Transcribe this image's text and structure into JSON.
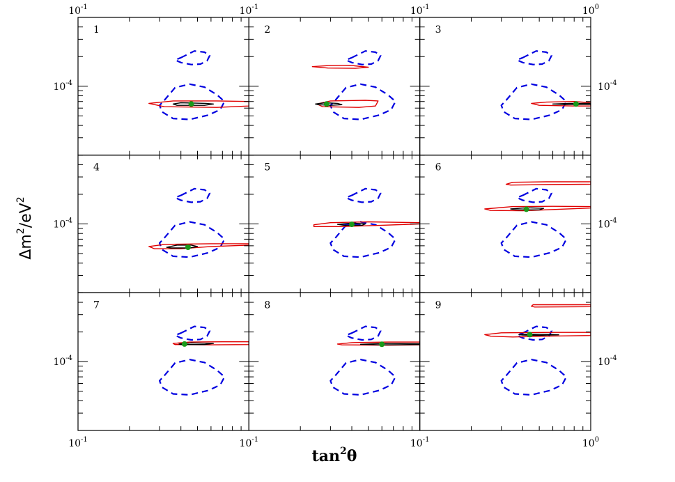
{
  "chart_data": {
    "type": "contour-grid",
    "xlabel": "tan",
    "xlabel_sup": "2",
    "xlabel_theta": "θ",
    "ylabel_main": "Δm",
    "ylabel_sup": "2",
    "ylabel_tail": "/eV",
    "ylabel_sup2": "2",
    "x_scale": "log",
    "y_scale": "log",
    "panel_xlim": [
      0.1,
      1.0
    ],
    "panel_ylim": [
      2e-05,
      0.0005
    ],
    "layout": {
      "rows": 3,
      "cols": 3
    },
    "x_tick_labels_bottom": [
      {
        "base": "10",
        "exp": "-1"
      },
      {
        "base": "10",
        "exp": "-1"
      },
      {
        "base": "10",
        "exp": "-1"
      },
      {
        "base": "10",
        "exp": "0"
      }
    ],
    "x_tick_labels_top": [
      {
        "base": "10",
        "exp": "-1"
      },
      {
        "base": "10",
        "exp": "-1"
      },
      {
        "base": "10",
        "exp": "-1"
      },
      {
        "base": "10",
        "exp": "0"
      }
    ],
    "y_tick_label": {
      "base": "10",
      "exp": "-4",
      "value": 0.0001
    },
    "colors": {
      "red": "#e00000",
      "black": "#000000",
      "blue": "#0000e0",
      "green": "#1a9a1a"
    },
    "reference_contours": [
      {
        "name": "upper-blue-dashed",
        "color": "blue",
        "style": "dashed",
        "points": [
          [
            0.4,
            0.000195
          ],
          [
            0.48,
            0.000228
          ],
          [
            0.55,
            0.000222
          ],
          [
            0.59,
            0.000205
          ],
          [
            0.57,
            0.000182
          ],
          [
            0.52,
            0.000168
          ],
          [
            0.46,
            0.000166
          ],
          [
            0.4,
            0.000174
          ],
          [
            0.37,
            0.000185
          ]
        ]
      },
      {
        "name": "lower-blue-dashed",
        "color": "blue",
        "style": "dashed",
        "points": [
          [
            0.32,
            7.2e-05
          ],
          [
            0.37,
            9.7e-05
          ],
          [
            0.45,
            0.000105
          ],
          [
            0.55,
            9.8e-05
          ],
          [
            0.65,
            8.2e-05
          ],
          [
            0.72,
            7e-05
          ],
          [
            0.68,
            5.8e-05
          ],
          [
            0.58,
            5.1e-05
          ],
          [
            0.45,
            4.6e-05
          ],
          [
            0.36,
            4.7e-05
          ],
          [
            0.31,
            5.5e-05
          ],
          [
            0.3,
            6.4e-05
          ]
        ]
      }
    ],
    "panels": [
      {
        "id": "1",
        "best_fit": [
          0.46,
          6.6e-05
        ],
        "red": [
          [
            [
              0.26,
              6.7e-05
            ],
            [
              0.36,
              7.1e-05
            ],
            [
              0.65,
              7.1e-05
            ],
            [
              1.0,
              7e-05
            ],
            [
              1.0,
              6.3e-05
            ],
            [
              0.65,
              6.1e-05
            ],
            [
              0.32,
              6.2e-05
            ]
          ]
        ],
        "black": [
          [
            0.36,
            6.6e-05
          ],
          [
            0.4,
            6.8e-05
          ],
          [
            0.56,
            6.7e-05
          ],
          [
            0.62,
            6.6e-05
          ],
          [
            0.55,
            6.4e-05
          ],
          [
            0.38,
            6.4e-05
          ]
        ]
      },
      {
        "id": "2",
        "best_fit": [
          0.285,
          6.6e-05
        ],
        "red": [
          [
            [
              0.25,
              6.6e-05
            ],
            [
              0.3,
              7.1e-05
            ],
            [
              0.48,
              7.2e-05
            ],
            [
              0.57,
              7.1e-05
            ],
            [
              0.55,
              6.3e-05
            ],
            [
              0.44,
              6.1e-05
            ],
            [
              0.27,
              6.2e-05
            ]
          ],
          [
            [
              0.235,
              0.000158
            ],
            [
              0.29,
              0.000162
            ],
            [
              0.39,
              0.000163
            ],
            [
              0.5,
              0.000156
            ],
            [
              0.42,
              0.000152
            ],
            [
              0.29,
              0.000153
            ]
          ]
        ],
        "black": [
          [
            0.245,
            6.6e-05
          ],
          [
            0.28,
            6.8e-05
          ],
          [
            0.33,
            6.7e-05
          ],
          [
            0.35,
            6.5e-05
          ],
          [
            0.3,
            6.4e-05
          ],
          [
            0.255,
            6.5e-05
          ]
        ]
      },
      {
        "id": "3",
        "best_fit": [
          0.82,
          6.6e-05
        ],
        "red": [
          [
            [
              0.45,
              6.7e-05
            ],
            [
              0.55,
              6.9e-05
            ],
            [
              0.8,
              7e-05
            ],
            [
              1.0,
              6.8e-05
            ],
            [
              1.0,
              6.3e-05
            ],
            [
              0.8,
              6.3e-05
            ],
            [
              0.5,
              6.4e-05
            ]
          ]
        ],
        "black": [
          [
            0.6,
            6.6e-05
          ],
          [
            0.75,
            6.7e-05
          ],
          [
            1.0,
            6.7e-05
          ],
          [
            1.0,
            6.5e-05
          ],
          [
            0.75,
            6.5e-05
          ]
        ]
      },
      {
        "id": "4",
        "best_fit": [
          0.44,
          5.8e-05
        ],
        "red": [
          [
            [
              0.26,
              5.9e-05
            ],
            [
              0.32,
              6.2e-05
            ],
            [
              0.6,
              6.3e-05
            ],
            [
              1.0,
              6.3e-05
            ],
            [
              1.0,
              6.1e-05
            ],
            [
              0.6,
              5.9e-05
            ],
            [
              0.4,
              5.6e-05
            ],
            [
              0.28,
              5.6e-05
            ]
          ]
        ],
        "black": [
          [
            0.33,
            5.8e-05
          ],
          [
            0.38,
            6.1e-05
          ],
          [
            0.46,
            6.1e-05
          ],
          [
            0.5,
            5.9e-05
          ],
          [
            0.45,
            5.7e-05
          ],
          [
            0.35,
            5.7e-05
          ]
        ]
      },
      {
        "id": "5",
        "best_fit": [
          0.4,
          9.9e-05
        ],
        "red": [
          [
            [
              0.24,
              9.8e-05
            ],
            [
              0.3,
              0.000103
            ],
            [
              0.5,
              0.000105
            ],
            [
              1.0,
              0.000103
            ],
            [
              1.0,
              0.0001
            ],
            [
              0.6,
              9.7e-05
            ],
            [
              0.35,
              9.4e-05
            ],
            [
              0.24,
              9.4e-05
            ]
          ]
        ],
        "black": [
          [
            0.33,
            9.9e-05
          ],
          [
            0.4,
            0.000102
          ],
          [
            0.48,
            0.0001
          ],
          [
            0.46,
            9.7e-05
          ],
          [
            0.36,
            9.7e-05
          ]
        ],
        "blue_extra": [
          [
            0.35,
            9.9e-05
          ],
          [
            0.45,
            9.9e-05
          ]
        ]
      },
      {
        "id": "6",
        "best_fit": [
          0.42,
          0.000141
        ],
        "red": [
          [
            [
              0.24,
              0.000142
            ],
            [
              0.35,
              0.00015
            ],
            [
              0.6,
              0.000151
            ],
            [
              1.0,
              0.00015
            ],
            [
              1.0,
              0.000145
            ],
            [
              0.6,
              0.00014
            ],
            [
              0.4,
              0.000136
            ],
            [
              0.26,
              0.000137
            ]
          ],
          [
            [
              0.32,
              0.000253
            ],
            [
              0.35,
              0.000265
            ],
            [
              0.55,
              0.000268
            ],
            [
              1.0,
              0.000268
            ],
            [
              1.0,
              0.000253
            ],
            [
              0.55,
              0.000251
            ],
            [
              0.34,
              0.000248
            ]
          ]
        ],
        "black": [
          [
            0.34,
            0.000142
          ],
          [
            0.42,
            0.000146
          ],
          [
            0.53,
            0.000144
          ],
          [
            0.5,
            0.000139
          ],
          [
            0.38,
            0.000139
          ]
        ]
      },
      {
        "id": "7",
        "best_fit": [
          0.42,
          0.000151
        ],
        "red": [
          [
            [
              0.36,
              0.000153
            ],
            [
              0.45,
              0.000158
            ],
            [
              0.7,
              0.000159
            ],
            [
              1.0,
              0.000159
            ],
            [
              1.0,
              0.000149
            ],
            [
              0.6,
              0.000148
            ],
            [
              0.37,
              0.000149
            ]
          ]
        ],
        "black": [
          [
            0.39,
            0.000151
          ],
          [
            0.46,
            0.000155
          ],
          [
            0.62,
            0.000153
          ],
          [
            0.55,
            0.000149
          ],
          [
            0.4,
            0.000149
          ]
        ]
      },
      {
        "id": "8",
        "best_fit": [
          0.6,
          0.00015
        ],
        "red": [
          [
            [
              0.33,
              0.000151
            ],
            [
              0.4,
              0.000156
            ],
            [
              0.65,
              0.000158
            ],
            [
              1.0,
              0.000158
            ],
            [
              1.0,
              0.000148
            ],
            [
              0.65,
              0.000147
            ],
            [
              0.35,
              0.000148
            ]
          ]
        ],
        "black": [
          [
            0.45,
            0.00015
          ],
          [
            0.6,
            0.000153
          ],
          [
            1.0,
            0.000152
          ],
          [
            1.0,
            0.000149
          ],
          [
            0.6,
            0.000148
          ]
        ]
      },
      {
        "id": "9",
        "best_fit": [
          0.44,
          0.000188
        ],
        "red": [
          [
            [
              0.24,
              0.000188
            ],
            [
              0.3,
              0.000196
            ],
            [
              0.6,
              0.000198
            ],
            [
              1.0,
              0.000198
            ],
            [
              1.0,
              0.000184
            ],
            [
              0.6,
              0.000182
            ],
            [
              0.35,
              0.000178
            ],
            [
              0.26,
              0.000181
            ]
          ],
          [
            [
              0.45,
              0.000365
            ],
            [
              0.46,
              0.000378
            ],
            [
              1.0,
              0.000378
            ],
            [
              1.0,
              0.000361
            ],
            [
              0.47,
              0.000358
            ]
          ]
        ],
        "black": [
          [
            0.38,
            0.000188
          ],
          [
            0.44,
            0.00019
          ],
          [
            0.58,
            0.000189
          ],
          [
            0.65,
            0.000187
          ],
          [
            0.5,
            0.000185
          ],
          [
            0.4,
            0.000186
          ]
        ]
      }
    ]
  }
}
